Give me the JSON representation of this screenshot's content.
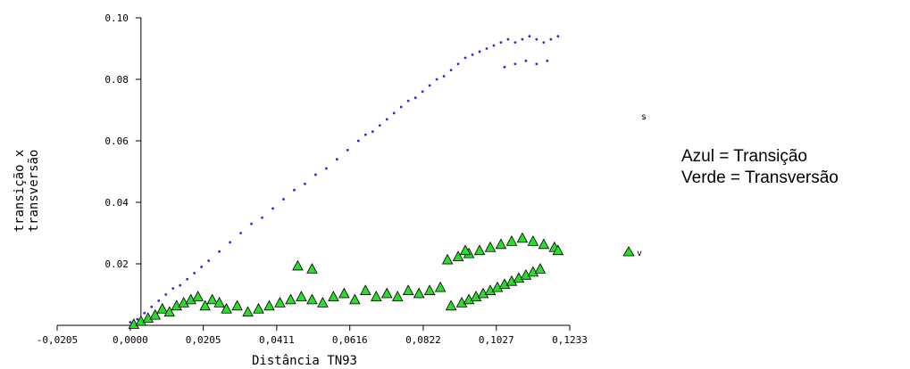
{
  "chart_data": {
    "type": "scatter",
    "title": "",
    "xlabel": "Distância TN93",
    "ylabel_lines": [
      "transição x",
      "transversão"
    ],
    "xlim": [
      -0.0205,
      0.1233
    ],
    "ylim": [
      0,
      0.1
    ],
    "x_ticks": [
      -0.0205,
      0.0,
      0.0205,
      0.0411,
      0.0616,
      0.0822,
      0.1027,
      0.1233
    ],
    "x_tick_labels": [
      "-0,0205",
      "0,0000",
      "0,0205",
      "0,0411",
      "0,0616",
      "0,0822",
      "0,1027",
      "0,1233"
    ],
    "y_ticks": [
      0.02,
      0.04,
      0.06,
      0.08,
      0.1
    ],
    "y_tick_labels": [
      "0.02",
      "0.04",
      "0.06",
      "0.08",
      "0.10"
    ],
    "grid": false,
    "series": [
      {
        "marker_label": "s",
        "marker": "dot",
        "color": "#2a2ad8",
        "x": [
          0.0,
          0.002,
          0.004,
          0.006,
          0.008,
          0.01,
          0.012,
          0.014,
          0.016,
          0.018,
          0.02,
          0.022,
          0.025,
          0.028,
          0.031,
          0.034,
          0.037,
          0.04,
          0.043,
          0.046,
          0.049,
          0.052,
          0.055,
          0.058,
          0.061,
          0.064,
          0.066,
          0.068,
          0.07,
          0.072,
          0.074,
          0.076,
          0.078,
          0.08,
          0.082,
          0.084,
          0.086,
          0.088,
          0.09,
          0.092,
          0.094,
          0.096,
          0.098,
          0.1,
          0.102,
          0.104,
          0.106,
          0.108,
          0.11,
          0.112,
          0.114,
          0.116,
          0.118,
          0.12,
          0.105,
          0.108,
          0.111,
          0.114,
          0.117
        ],
        "y": [
          0.001,
          0.002,
          0.004,
          0.006,
          0.008,
          0.01,
          0.012,
          0.013,
          0.015,
          0.017,
          0.019,
          0.021,
          0.024,
          0.027,
          0.03,
          0.033,
          0.035,
          0.038,
          0.041,
          0.044,
          0.046,
          0.049,
          0.051,
          0.054,
          0.057,
          0.06,
          0.062,
          0.063,
          0.065,
          0.067,
          0.069,
          0.071,
          0.073,
          0.074,
          0.076,
          0.078,
          0.08,
          0.081,
          0.083,
          0.085,
          0.087,
          0.088,
          0.089,
          0.09,
          0.091,
          0.092,
          0.093,
          0.092,
          0.093,
          0.094,
          0.093,
          0.092,
          0.093,
          0.094,
          0.084,
          0.085,
          0.086,
          0.085,
          0.086
        ]
      },
      {
        "marker_label": "v",
        "marker": "triangle",
        "color": "#2bdc2b",
        "x": [
          0.001,
          0.003,
          0.005,
          0.007,
          0.009,
          0.011,
          0.013,
          0.015,
          0.017,
          0.019,
          0.021,
          0.023,
          0.025,
          0.027,
          0.03,
          0.033,
          0.036,
          0.039,
          0.042,
          0.045,
          0.048,
          0.051,
          0.054,
          0.057,
          0.06,
          0.063,
          0.066,
          0.069,
          0.072,
          0.075,
          0.078,
          0.081,
          0.084,
          0.087,
          0.09,
          0.093,
          0.095,
          0.097,
          0.099,
          0.101,
          0.103,
          0.105,
          0.107,
          0.109,
          0.111,
          0.113,
          0.115,
          0.092,
          0.095,
          0.098,
          0.101,
          0.104,
          0.107,
          0.11,
          0.113,
          0.116,
          0.119,
          0.12,
          0.047,
          0.051,
          0.089,
          0.094
        ],
        "y": [
          0.0,
          0.001,
          0.002,
          0.003,
          0.005,
          0.004,
          0.006,
          0.007,
          0.008,
          0.009,
          0.006,
          0.008,
          0.007,
          0.005,
          0.006,
          0.004,
          0.005,
          0.006,
          0.007,
          0.008,
          0.009,
          0.008,
          0.007,
          0.009,
          0.01,
          0.008,
          0.011,
          0.009,
          0.01,
          0.009,
          0.011,
          0.01,
          0.011,
          0.012,
          0.006,
          0.007,
          0.008,
          0.009,
          0.01,
          0.011,
          0.012,
          0.013,
          0.014,
          0.015,
          0.016,
          0.017,
          0.018,
          0.022,
          0.023,
          0.024,
          0.025,
          0.026,
          0.027,
          0.028,
          0.027,
          0.026,
          0.025,
          0.024,
          0.019,
          0.018,
          0.021,
          0.024
        ]
      }
    ]
  },
  "legend": {
    "line1": "Azul = Transição",
    "line2": "Verde = Transversão"
  }
}
